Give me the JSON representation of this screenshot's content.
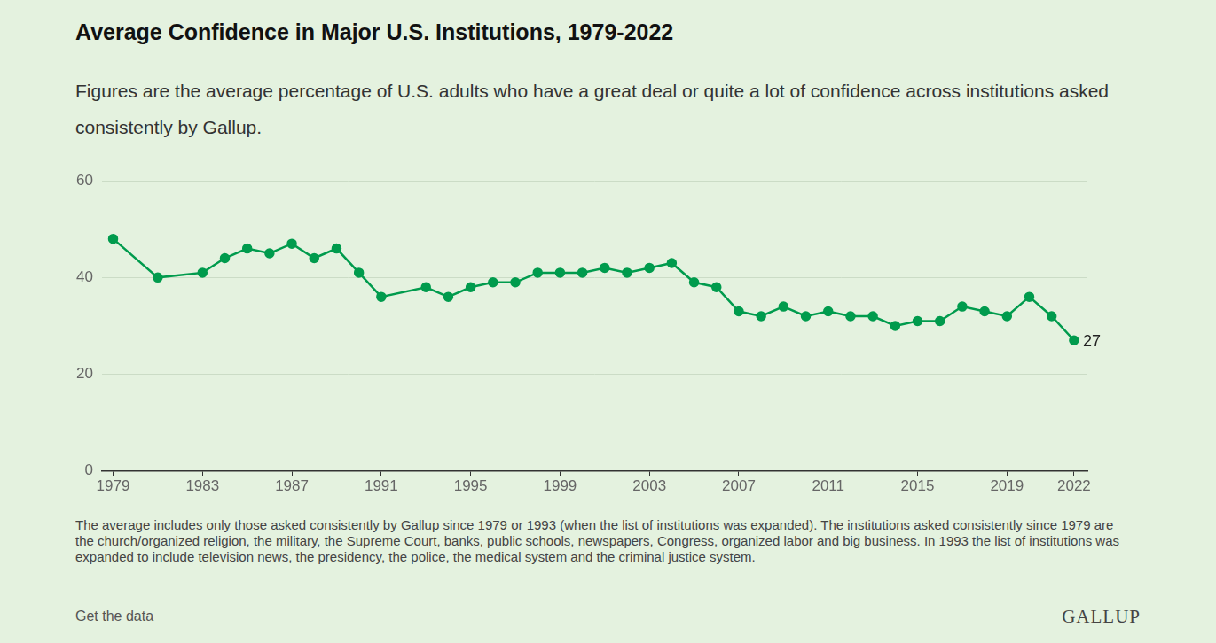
{
  "chart_data": {
    "type": "line",
    "title": "Average Confidence in Major U.S. Institutions, 1979-2022",
    "subtitle": "Figures are the average percentage of U.S. adults who have a great deal or quite a lot of confidence across institutions asked consistently by Gallup.",
    "x": [
      1979,
      1981,
      1983,
      1984,
      1985,
      1986,
      1987,
      1988,
      1989,
      1990,
      1991,
      1993,
      1994,
      1995,
      1996,
      1997,
      1998,
      1999,
      2000,
      2001,
      2002,
      2003,
      2004,
      2005,
      2006,
      2007,
      2008,
      2009,
      2010,
      2011,
      2012,
      2013,
      2014,
      2015,
      2016,
      2017,
      2018,
      2019,
      2020,
      2021,
      2022
    ],
    "values": [
      48,
      40,
      41,
      44,
      46,
      45,
      47,
      44,
      46,
      41,
      36,
      38,
      36,
      38,
      39,
      39,
      41,
      41,
      41,
      42,
      41,
      42,
      43,
      39,
      38,
      33,
      32,
      34,
      32,
      33,
      32,
      32,
      30,
      31,
      31,
      34,
      33,
      32,
      36,
      32,
      27
    ],
    "color": "#009b4d",
    "marker": "circle",
    "xlim": [
      1978.5,
      2022.6
    ],
    "xticks": [
      1979,
      1983,
      1987,
      1991,
      1995,
      1999,
      2003,
      2007,
      2011,
      2015,
      2019,
      2022
    ],
    "ylim": [
      0,
      60
    ],
    "yticks": [
      0,
      20,
      40,
      60
    ],
    "grid": true,
    "annotations": [
      {
        "x": 2022,
        "y": 27,
        "text": "27"
      }
    ]
  },
  "footnote": "The average includes only those asked consistently by Gallup since 1979 or 1993 (when the list of institutions was expanded). The institutions asked consistently since 1979 are the church/organized religion, the military, the Supreme Court, banks, public schools, newspapers, Congress, organized labor and big business. In 1993 the list of institutions was expanded to include television news, the presidency, the police, the medical system and the criminal justice system.",
  "source_link": "Get the data",
  "brand": "GALLUP"
}
